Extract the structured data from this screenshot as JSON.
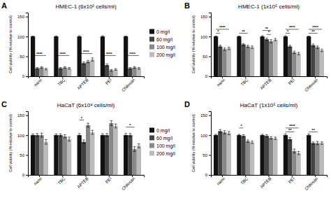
{
  "chart_data": [
    {
      "type": "bar",
      "panel_label": "A",
      "title": "HMEC-1 (6x10² cells/ml)",
      "ylabel": "Cell viability (% relative to control)",
      "categories": [
        "nano",
        "TBC",
        "APTEB",
        "PEI",
        "Chitosan"
      ],
      "series": [
        {
          "name": "0 mg/l",
          "color": "#111111",
          "values": [
            100,
            100,
            100,
            100,
            100
          ],
          "errors": [
            1,
            1,
            2,
            2,
            1
          ]
        },
        {
          "name": "60 mg/l",
          "color": "#444444",
          "values": [
            20,
            20,
            33,
            28,
            20
          ],
          "errors": [
            2,
            2,
            3,
            3,
            2
          ]
        },
        {
          "name": "100 mg/l",
          "color": "#888888",
          "values": [
            22,
            22,
            37,
            15,
            22
          ],
          "errors": [
            2,
            2,
            3,
            2,
            2
          ]
        },
        {
          "name": "200 mg/l",
          "color": "#bbbbbb",
          "values": [
            18,
            20,
            42,
            17,
            20
          ],
          "errors": [
            2,
            2,
            4,
            2,
            2
          ]
        }
      ],
      "ylim": [
        0,
        160
      ],
      "yticks": [
        0,
        50,
        100,
        150
      ],
      "annotations": [
        {
          "category": "nano",
          "from": "0 mg/l",
          "to": "200 mg/l",
          "y": 52,
          "label": "****"
        },
        {
          "category": "TBC",
          "from": "0 mg/l",
          "to": "200 mg/l",
          "y": 52,
          "label": "****"
        },
        {
          "category": "APTEB",
          "from": "0 mg/l",
          "to": "200 mg/l",
          "y": 57,
          "label": "****"
        },
        {
          "category": "PEI",
          "from": "0 mg/l",
          "to": "200 mg/l",
          "y": 52,
          "label": "****"
        },
        {
          "category": "Chitosan",
          "from": "0 mg/l",
          "to": "200 mg/l",
          "y": 52,
          "label": "****"
        }
      ]
    },
    {
      "type": "bar",
      "panel_label": "B",
      "title": "HMEC-1 (1x10⁵ cells/ml)",
      "ylabel": "Cell viability (% relative to control)",
      "categories": [
        "nano",
        "TBC",
        "APTEB",
        "PEI",
        "Chitosan"
      ],
      "series": [
        {
          "name": "0 mg/l",
          "color": "#111111",
          "values": [
            100,
            100,
            100,
            100,
            100
          ],
          "errors": [
            1,
            1,
            2,
            2,
            1
          ]
        },
        {
          "name": "60 mg/l",
          "color": "#444444",
          "values": [
            75,
            80,
            93,
            75,
            78
          ],
          "errors": [
            3,
            2,
            3,
            3,
            3
          ]
        },
        {
          "name": "100 mg/l",
          "color": "#888888",
          "values": [
            68,
            75,
            88,
            60,
            73
          ],
          "errors": [
            3,
            3,
            4,
            3,
            3
          ]
        },
        {
          "name": "200 mg/l",
          "color": "#bbbbbb",
          "values": [
            70,
            73,
            92,
            57,
            65
          ],
          "errors": [
            3,
            3,
            3,
            3,
            3
          ]
        }
      ],
      "ylim": [
        0,
        160
      ],
      "yticks": [
        0,
        50,
        100,
        150
      ],
      "annotations": [
        {
          "category": "nano",
          "from": "0 mg/l",
          "to": "60 mg/l",
          "y": 108,
          "label": "*"
        },
        {
          "category": "nano",
          "from": "0 mg/l",
          "to": "200 mg/l",
          "y": 118,
          "label": "****"
        },
        {
          "category": "TBC",
          "from": "0 mg/l",
          "to": "100 mg/l",
          "y": 108,
          "label": "**"
        },
        {
          "category": "APTEB",
          "from": "60 mg/l",
          "to": "100 mg/l",
          "y": 105,
          "label": "*"
        },
        {
          "category": "APTEB",
          "from": "0 mg/l",
          "to": "100 mg/l",
          "y": 115,
          "label": "**"
        },
        {
          "category": "PEI",
          "from": "0 mg/l",
          "to": "60 mg/l",
          "y": 108,
          "label": "*"
        },
        {
          "category": "PEI",
          "from": "0 mg/l",
          "to": "200 mg/l",
          "y": 118,
          "label": "****"
        },
        {
          "category": "Chitosan",
          "from": "0 mg/l",
          "to": "100 mg/l",
          "y": 108,
          "label": "**"
        },
        {
          "category": "Chitosan",
          "from": "0 mg/l",
          "to": "200 mg/l",
          "y": 118,
          "label": "****"
        }
      ]
    },
    {
      "type": "bar",
      "panel_label": "C",
      "title": "HaCaT (6x10⁴ cells/ml)",
      "ylabel": "Cell viability (% relative to control)",
      "categories": [
        "nano",
        "TBC",
        "APTEB",
        "PEI",
        "Chitosan"
      ],
      "series": [
        {
          "name": "0 mg/l",
          "color": "#111111",
          "values": [
            100,
            100,
            100,
            100,
            100
          ],
          "errors": [
            3,
            3,
            4,
            3,
            4
          ]
        },
        {
          "name": "60 mg/l",
          "color": "#444444",
          "values": [
            100,
            100,
            83,
            100,
            100
          ],
          "errors": [
            4,
            3,
            5,
            4,
            4
          ]
        },
        {
          "name": "100 mg/l",
          "color": "#888888",
          "values": [
            100,
            97,
            125,
            130,
            65
          ],
          "errors": [
            5,
            4,
            5,
            6,
            6
          ]
        },
        {
          "name": "200 mg/l",
          "color": "#bbbbbb",
          "values": [
            83,
            90,
            107,
            123,
            73
          ],
          "errors": [
            6,
            5,
            5,
            5,
            5
          ]
        }
      ],
      "ylim": [
        0,
        160
      ],
      "yticks": [
        0,
        50,
        100,
        150
      ],
      "annotations": [
        {
          "category": "APTEB",
          "from": "0 mg/l",
          "to": "60 mg/l",
          "y": 138,
          "label": "*"
        },
        {
          "category": "Chitosan",
          "from": "0 mg/l",
          "to": "100 mg/l",
          "y": 120,
          "label": "*"
        }
      ]
    },
    {
      "type": "bar",
      "panel_label": "D",
      "title": "HaCaT (1x10⁵ cells/ml)",
      "ylabel": "Cell viability (% relative to control)",
      "categories": [
        "nano",
        "TBC",
        "APTEB",
        "PEI",
        "Chitosan"
      ],
      "series": [
        {
          "name": "0 mg/l",
          "color": "#111111",
          "values": [
            100,
            100,
            100,
            100,
            100
          ],
          "errors": [
            2,
            2,
            2,
            3,
            3
          ]
        },
        {
          "name": "60 mg/l",
          "color": "#444444",
          "values": [
            110,
            98,
            98,
            90,
            80
          ],
          "errors": [
            4,
            3,
            3,
            4,
            3
          ]
        },
        {
          "name": "100 mg/l",
          "color": "#888888",
          "values": [
            107,
            85,
            93,
            60,
            80
          ],
          "errors": [
            4,
            3,
            3,
            5,
            4
          ]
        },
        {
          "name": "200 mg/l",
          "color": "#bbbbbb",
          "values": [
            105,
            82,
            92,
            55,
            80
          ],
          "errors": [
            4,
            3,
            3,
            4,
            3
          ]
        }
      ],
      "ylim": [
        0,
        160
      ],
      "yticks": [
        0,
        50,
        100,
        150
      ],
      "annotations": [
        {
          "category": "TBC",
          "from": "0 mg/l",
          "to": "60 mg/l",
          "y": 118,
          "label": "*"
        },
        {
          "category": "PEI",
          "from": "0 mg/l",
          "to": "100 mg/l",
          "y": 108,
          "label": "**"
        },
        {
          "category": "PEI",
          "from": "0 mg/l",
          "to": "200 mg/l",
          "y": 118,
          "label": "****"
        },
        {
          "category": "Chitosan",
          "from": "0 mg/l",
          "to": "100 mg/l",
          "y": 108,
          "label": "**"
        }
      ]
    }
  ]
}
